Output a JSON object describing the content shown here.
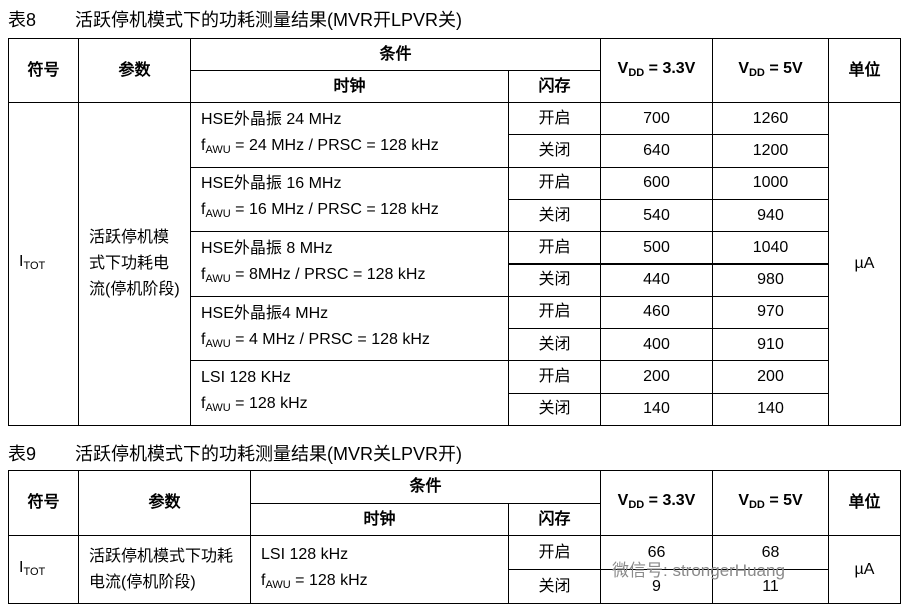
{
  "tables": [
    {
      "number": "表8",
      "caption": "活跃停机模式下的功耗测量结果(MVR开LPVR关)",
      "header": {
        "symbol": "符号",
        "param": "参数",
        "condition": "条件",
        "clock": "时钟",
        "flash": "闪存",
        "vdd1": {
          "main": "V",
          "sub": "DD",
          "rest": " = 3.3V"
        },
        "vdd2": {
          "main": "V",
          "sub": "DD",
          "rest": " = 5V"
        },
        "unit": "单位"
      },
      "symbol": {
        "main": "I",
        "sub": "TOT"
      },
      "param": "活跃停机模式下功耗电流(停机阶段)",
      "unit": "µA",
      "groups": [
        {
          "clock": "HSE外晶振 24 MHz",
          "awu": {
            "main": "f",
            "sub": "AWU",
            "rest": " = 24 MHz / PRSC = 128 kHz"
          },
          "rows": [
            [
              "开启",
              700,
              1260
            ],
            [
              "关闭",
              640,
              1200
            ]
          ]
        },
        {
          "clock": "HSE外晶振 16 MHz",
          "awu": {
            "main": "f",
            "sub": "AWU",
            "rest": " = 16 MHz / PRSC = 128 kHz"
          },
          "rows": [
            [
              "开启",
              600,
              1000
            ],
            [
              "关闭",
              540,
              940
            ]
          ]
        },
        {
          "clock": "HSE外晶振 8 MHz",
          "awu": {
            "main": "f",
            "sub": "AWU",
            "rest": " = 8MHz / PRSC = 128 kHz"
          },
          "rows": [
            [
              "开启",
              500,
              1040
            ],
            [
              "关闭",
              440,
              980
            ]
          ]
        },
        {
          "clock": "HSE外晶振4 MHz",
          "awu": {
            "main": "f",
            "sub": "AWU",
            "rest": " = 4 MHz / PRSC = 128 kHz"
          },
          "rows": [
            [
              "开启",
              460,
              970
            ],
            [
              "关闭",
              400,
              910
            ]
          ]
        },
        {
          "clock": "LSI 128 KHz",
          "awu": {
            "main": "f",
            "sub": "AWU",
            "rest": " = 128 kHz"
          },
          "rows": [
            [
              "开启",
              200,
              200
            ],
            [
              "关闭",
              140,
              140
            ]
          ]
        }
      ]
    },
    {
      "number": "表9",
      "caption": "活跃停机模式下的功耗测量结果(MVR关LPVR开)",
      "header": {
        "symbol": "符号",
        "param": "参数",
        "condition": "条件",
        "clock": "时钟",
        "flash": "闪存",
        "vdd1": {
          "main": "V",
          "sub": "DD",
          "rest": " = 3.3V"
        },
        "vdd2": {
          "main": "V",
          "sub": "DD",
          "rest": " = 5V"
        },
        "unit": "单位"
      },
      "symbol": {
        "main": "I",
        "sub": "TOT"
      },
      "param": "活跃停机模式下功耗电流(停机阶段)",
      "unit": "µA",
      "groups": [
        {
          "clock": "LSI 128 kHz",
          "awu": {
            "main": "f",
            "sub": "AWU",
            "rest": " = 128 kHz"
          },
          "rows": [
            [
              "开启",
              66,
              68
            ],
            [
              "关闭",
              9,
              11
            ]
          ]
        }
      ]
    }
  ],
  "watermark": "微信号: strongerHuang"
}
